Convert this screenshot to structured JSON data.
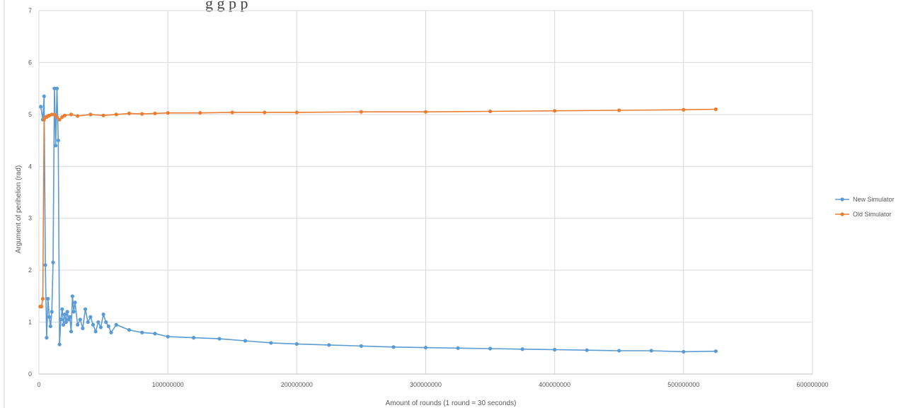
{
  "page": {
    "top_text": "g                          g            p p"
  },
  "chart_data": {
    "type": "line",
    "title": "",
    "xlabel": "Amount of rounds (1 round = 30 seconds)",
    "ylabel": "Argument of perihelion (rad)",
    "xlim": [
      0,
      600000000
    ],
    "ylim": [
      0,
      7
    ],
    "x_ticks": [
      "0",
      "100000000",
      "200000000",
      "300000000",
      "400000000",
      "500000000",
      "600000000"
    ],
    "y_ticks": [
      "0",
      "1",
      "2",
      "3",
      "4",
      "5",
      "6",
      "7"
    ],
    "grid": true,
    "legend_position": "right",
    "series": [
      {
        "name": "New Simulator",
        "color": "#5b9bd5",
        "x": [
          1500000,
          3000000,
          4000000,
          5000000,
          6000000,
          7000000,
          8000000,
          9000000,
          10000000,
          11000000,
          12000000,
          13000000,
          14000000,
          15000000,
          16000000,
          17000000,
          18000000,
          19000000,
          20000000,
          21000000,
          22000000,
          23000000,
          24000000,
          25000000,
          26000000,
          27000000,
          28000000,
          30000000,
          32000000,
          34000000,
          36000000,
          38000000,
          40000000,
          42000000,
          44000000,
          46000000,
          48000000,
          50000000,
          52000000,
          54000000,
          56000000,
          60000000,
          70000000,
          80000000,
          90000000,
          100000000,
          120000000,
          140000000,
          160000000,
          180000000,
          200000000,
          225000000,
          250000000,
          275000000,
          300000000,
          325000000,
          350000000,
          375000000,
          400000000,
          425000000,
          450000000,
          475000000,
          500000000,
          525000000
        ],
        "values": [
          5.15,
          4.9,
          5.35,
          2.1,
          0.7,
          1.45,
          1.1,
          0.92,
          1.2,
          2.15,
          5.5,
          4.4,
          5.5,
          4.5,
          0.57,
          1.05,
          1.25,
          0.95,
          1.15,
          1.0,
          1.2,
          1.05,
          1.1,
          0.82,
          1.5,
          1.2,
          1.38,
          0.95,
          1.05,
          0.88,
          1.25,
          1.0,
          1.1,
          0.95,
          0.82,
          1.0,
          0.9,
          1.15,
          1.0,
          0.92,
          0.8,
          0.95,
          0.85,
          0.8,
          0.78,
          0.72,
          0.7,
          0.68,
          0.64,
          0.6,
          0.58,
          0.56,
          0.54,
          0.52,
          0.51,
          0.5,
          0.49,
          0.48,
          0.47,
          0.46,
          0.45,
          0.45,
          0.43,
          0.44
        ]
      },
      {
        "name": "Old Simulator",
        "color": "#ed7d31",
        "x": [
          1000000,
          2000000,
          3000000,
          4000000,
          5000000,
          6000000,
          7000000,
          8000000,
          10000000,
          12000000,
          14000000,
          16000000,
          18000000,
          20000000,
          25000000,
          30000000,
          40000000,
          50000000,
          60000000,
          70000000,
          80000000,
          90000000,
          100000000,
          125000000,
          150000000,
          175000000,
          200000000,
          250000000,
          300000000,
          350000000,
          400000000,
          450000000,
          500000000,
          525000000
        ],
        "values": [
          1.3,
          1.3,
          1.45,
          4.9,
          4.95,
          4.95,
          4.97,
          4.98,
          5.0,
          5.0,
          4.95,
          4.9,
          4.95,
          4.98,
          5.0,
          4.97,
          5.0,
          4.98,
          5.0,
          5.02,
          5.01,
          5.02,
          5.03,
          5.03,
          5.04,
          5.04,
          5.04,
          5.05,
          5.05,
          5.06,
          5.07,
          5.08,
          5.09,
          5.1
        ]
      }
    ]
  }
}
